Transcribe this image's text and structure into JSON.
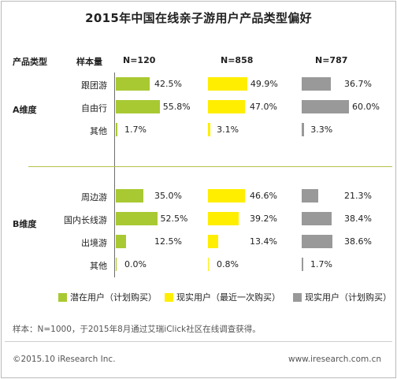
{
  "title": "2015年中国在线亲子游用户产品类型偏好",
  "headers": {
    "type": "产品类型",
    "sample": "样本量",
    "n1": "N=120",
    "n2": "N=858",
    "n3": "N=787"
  },
  "dimensions": {
    "a": "A维度",
    "b": "B维度"
  },
  "colors": {
    "potential": "#a9c933",
    "recent": "#ffee00",
    "planned": "#999999",
    "divider": "#b7c24a"
  },
  "chart_data": {
    "type": "bar",
    "title": "2015年中国在线亲子游用户产品类型偏好",
    "categories": [
      "跟团游",
      "自由行",
      "其他",
      "周边游",
      "国内长线游",
      "出境游",
      "其他"
    ],
    "groups": [
      "A维度",
      "A维度",
      "A维度",
      "B维度",
      "B维度",
      "B维度",
      "B维度"
    ],
    "series": [
      {
        "name": "潜在用户（计划购买）",
        "values": [
          42.5,
          55.8,
          1.7,
          35.0,
          52.5,
          12.5,
          0.0
        ],
        "labels": [
          "42.5%",
          "55.8%",
          "1.7%",
          "35.0%",
          "52.5%",
          "12.5%",
          "0.0%"
        ]
      },
      {
        "name": "现实用户（最近一次购买）",
        "values": [
          49.9,
          47.0,
          3.1,
          46.6,
          39.2,
          13.4,
          0.8
        ],
        "labels": [
          "49.9%",
          "47.0%",
          "3.1%",
          "46.6%",
          "39.2%",
          "13.4%",
          "0.8%"
        ]
      },
      {
        "name": "现实用户（计划购买）",
        "values": [
          36.7,
          60.0,
          3.3,
          21.3,
          38.4,
          38.6,
          1.7
        ],
        "labels": [
          "36.7%",
          "60.0%",
          "3.3%",
          "21.3%",
          "38.4%",
          "38.6%",
          "1.7%"
        ]
      }
    ],
    "legend": "bottom"
  },
  "legend": {
    "potential": "潜在用户（计划购买）",
    "recent": "现实用户（最近一次购买）",
    "planned": "现实用户（计划购买）"
  },
  "footer": {
    "note": "样本：N=1000，于2015年8月通过艾瑞iClick社区在线调查获得。",
    "copyright": "©2015.10 iResearch Inc.",
    "website": "www.iresearch.com.cn"
  }
}
